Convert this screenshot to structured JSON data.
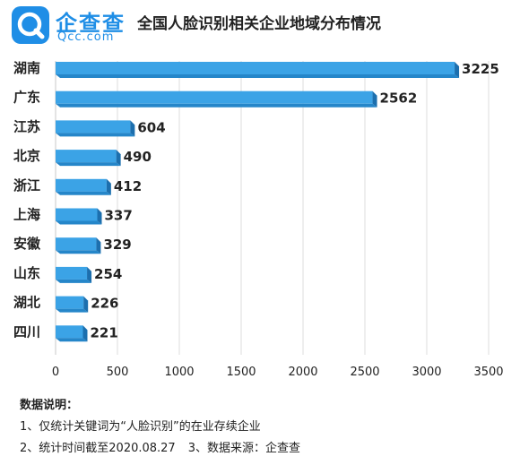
{
  "brand": {
    "name": "企查查",
    "domain": "Qcc.com"
  },
  "chart_data": {
    "type": "bar",
    "orientation": "horizontal",
    "title": "全国人脸识别相关企业地域分布情况",
    "categories": [
      "湖南",
      "广东",
      "江苏",
      "北京",
      "浙江",
      "上海",
      "安徽",
      "山东",
      "湖北",
      "四川"
    ],
    "values": [
      3225,
      2562,
      604,
      490,
      412,
      337,
      329,
      254,
      226,
      221
    ],
    "x_ticks": [
      0,
      500,
      1000,
      1500,
      2000,
      2500,
      3000,
      3500
    ],
    "xlim": [
      0,
      3500
    ],
    "grid": "vertical",
    "bar_color": "#3ba3e6"
  },
  "notes": {
    "title": "数据说明：",
    "line1": "1、仅统计关键词为“人脸识别”的在业存续企业",
    "line2a": "2、统计时间截至2020.08.27",
    "line2b": "3、数据来源：企查查"
  }
}
